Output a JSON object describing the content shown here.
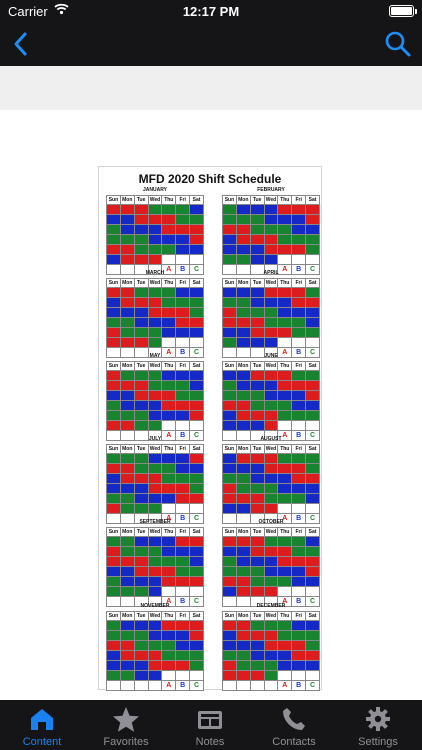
{
  "status_bar": {
    "carrier": "Carrier",
    "time": "12:17 PM"
  },
  "nav": {
    "back_icon": "chevron-left-icon",
    "search_icon": "search-icon"
  },
  "document": {
    "title": "MFD 2020 Shift Schedule",
    "weekday_headers": [
      "Sun",
      "Mon",
      "Tue",
      "Wed",
      "Thu",
      "Fri",
      "Sat"
    ],
    "legend": [
      "A",
      "B",
      "C"
    ],
    "months": [
      {
        "name": "JANUARY"
      },
      {
        "name": "FEBRUARY"
      },
      {
        "name": "MARCH"
      },
      {
        "name": "APRIL"
      },
      {
        "name": "MAY"
      },
      {
        "name": "JUNE"
      },
      {
        "name": "JULY"
      },
      {
        "name": "AUGUST"
      },
      {
        "name": "SEPTEMBER"
      },
      {
        "name": "OCTOBER"
      },
      {
        "name": "NOVEMBER"
      },
      {
        "name": "DECEMBER"
      }
    ]
  },
  "tab_bar": {
    "tabs": [
      {
        "label": "Content",
        "icon": "home-icon",
        "active": true
      },
      {
        "label": "Favorites",
        "icon": "star-icon",
        "active": false
      },
      {
        "label": "Notes",
        "icon": "notes-icon",
        "active": false
      },
      {
        "label": "Contacts",
        "icon": "phone-icon",
        "active": false
      },
      {
        "label": "Settings",
        "icon": "gear-icon",
        "active": false
      }
    ]
  }
}
